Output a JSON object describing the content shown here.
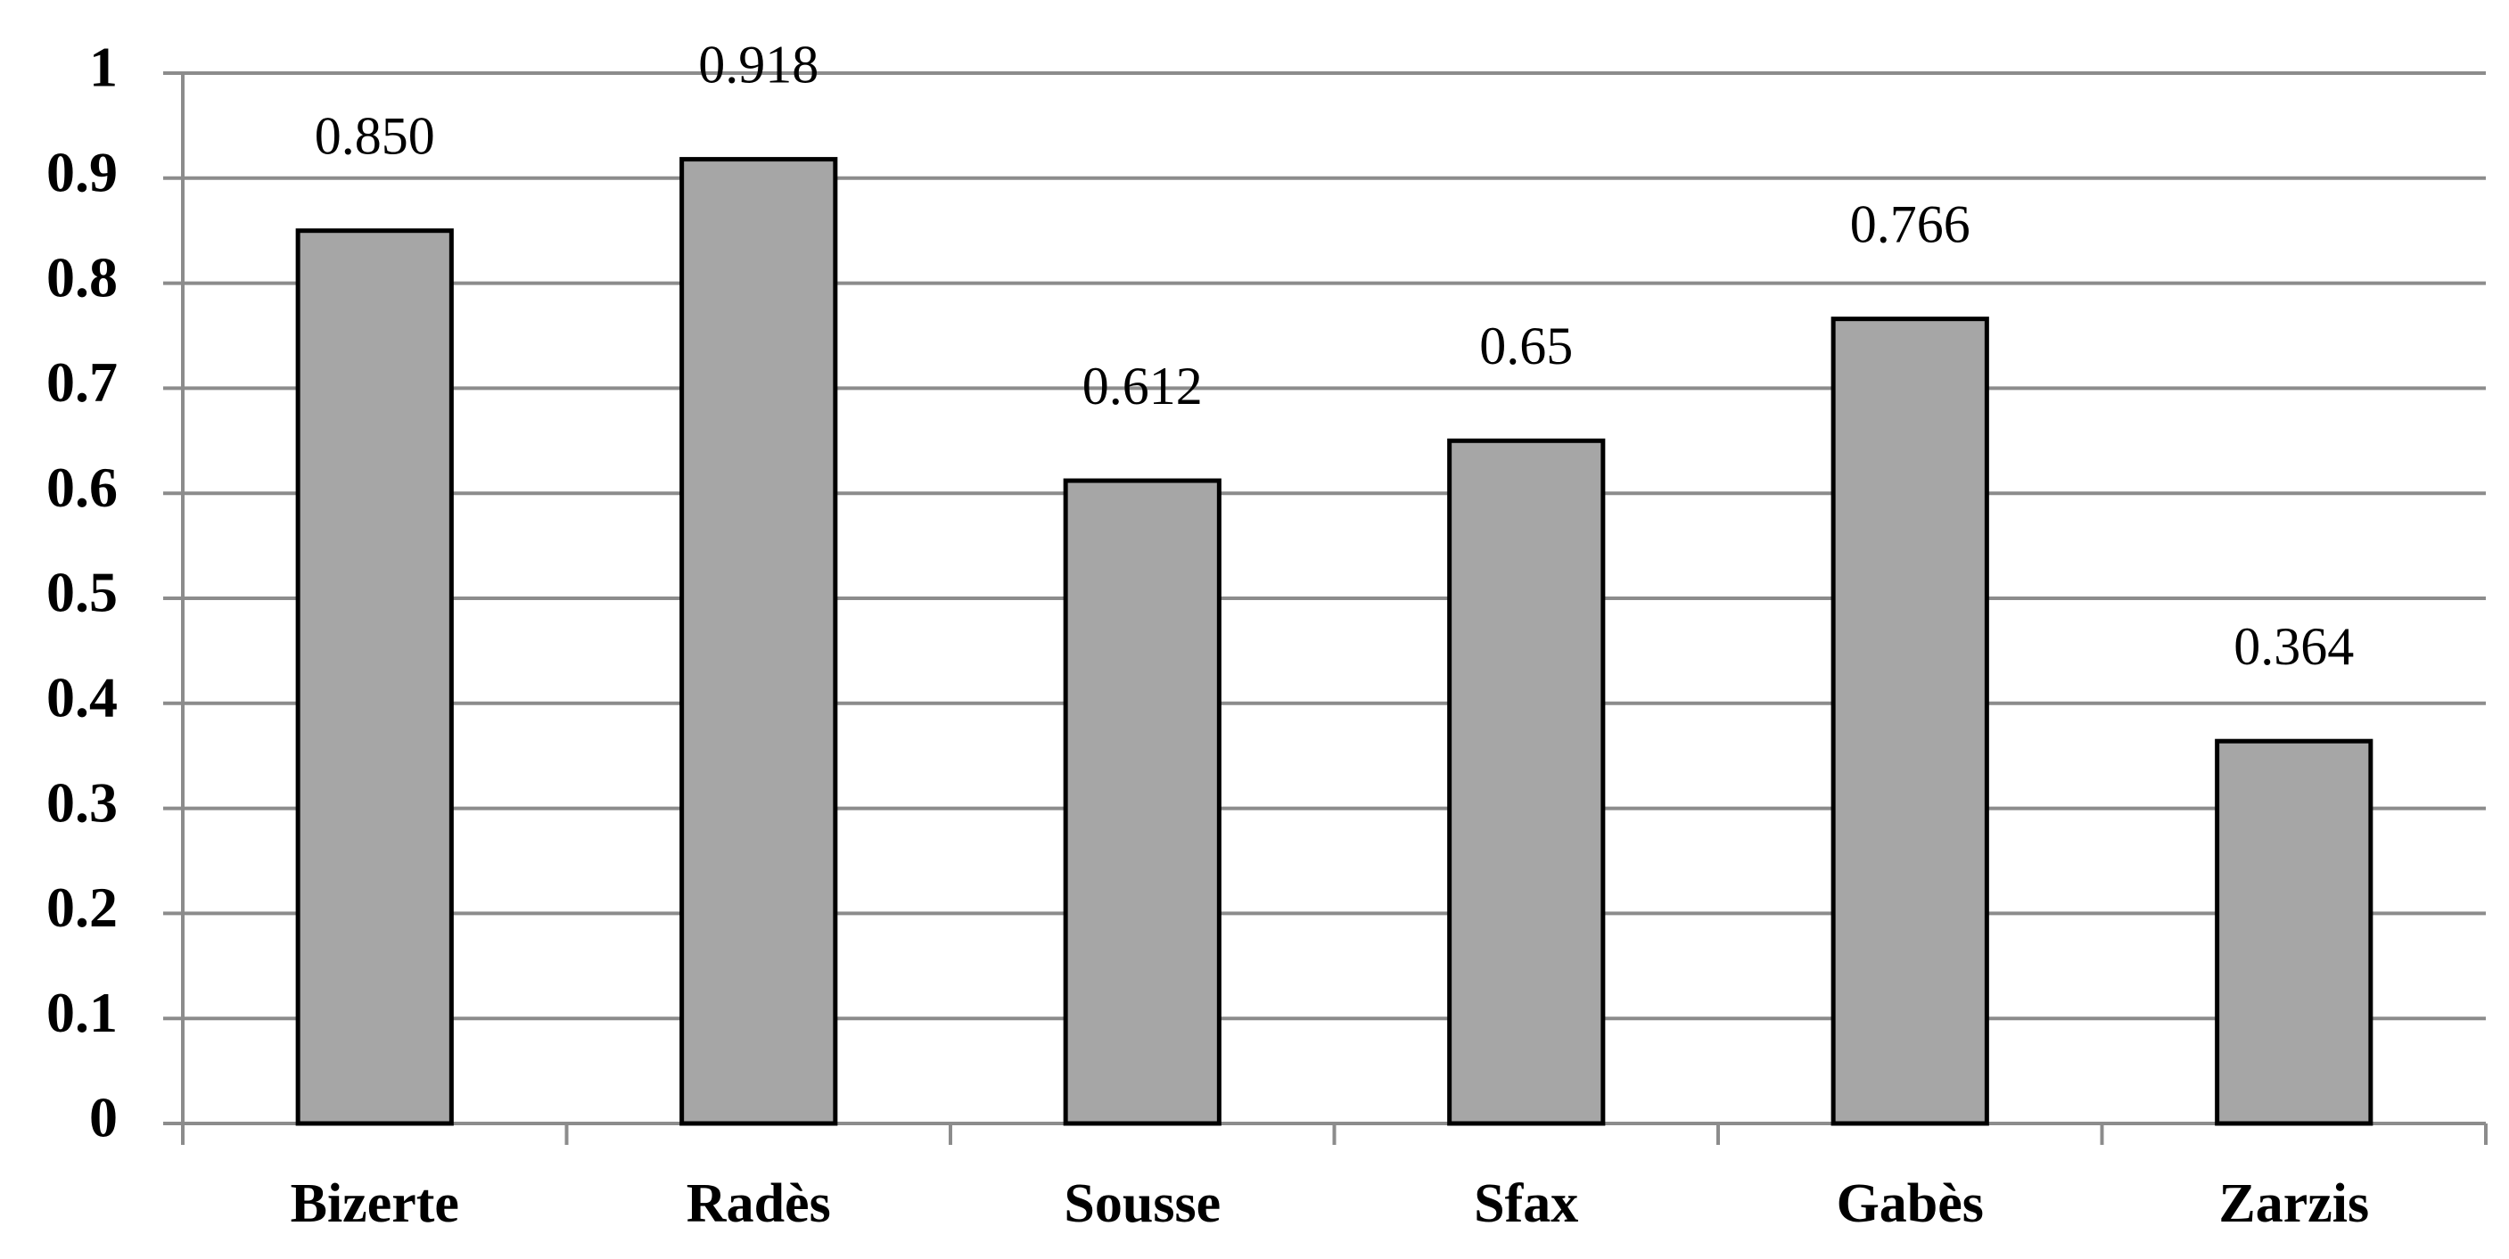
{
  "chart_data": {
    "type": "bar",
    "categories": [
      "Bizerte",
      "Radès",
      "Sousse",
      "Sfax",
      "Gabès",
      "Zarzis"
    ],
    "values": [
      0.85,
      0.918,
      0.612,
      0.65,
      0.766,
      0.364
    ],
    "value_labels": [
      "0.850",
      "0.918",
      "0.612",
      "0.65",
      "0.766",
      "0.364"
    ],
    "color": "#a6a6a6",
    "ylim": [
      0,
      1
    ],
    "yticks": [
      0,
      0.1,
      0.2,
      0.3,
      0.4,
      0.5,
      0.6,
      0.7,
      0.8,
      0.9,
      1
    ],
    "grid": true
  }
}
